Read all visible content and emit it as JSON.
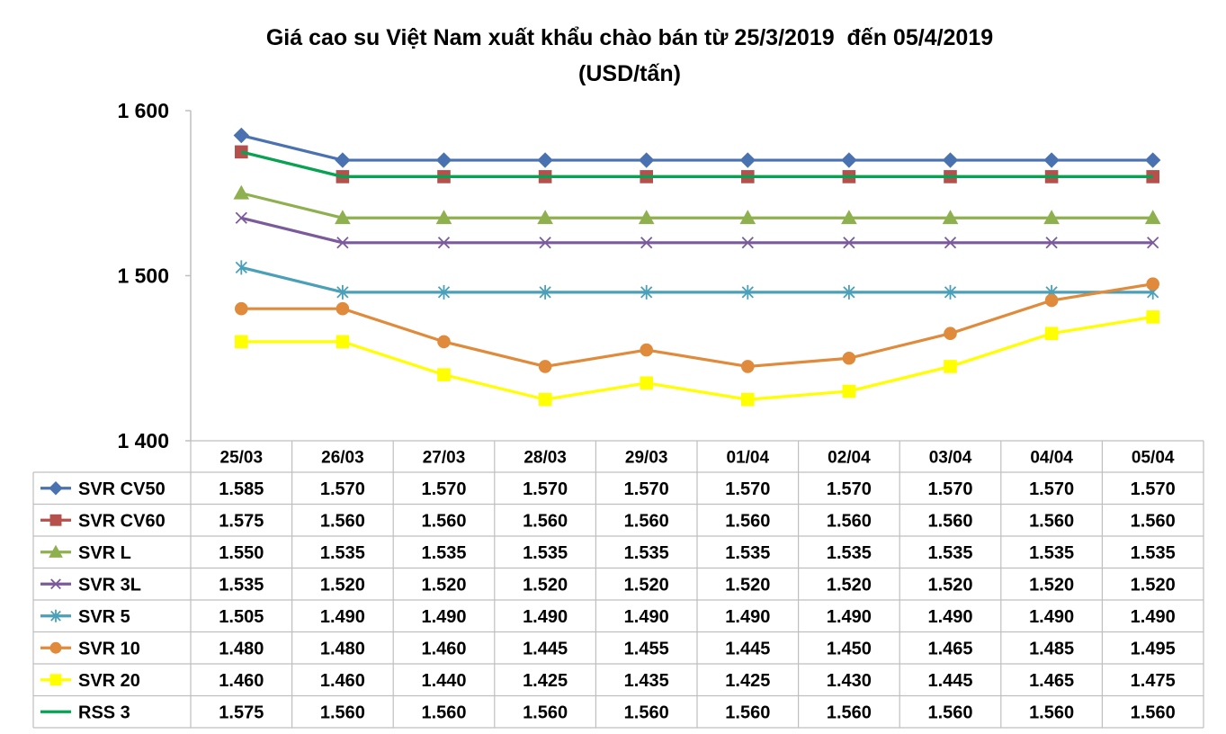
{
  "chart_data": {
    "type": "line",
    "title": "Giá cao su Việt Nam xuất khẩu chào bán từ 25/3/2019  đến 05/4/2019",
    "subtitle": "(USD/tấn)",
    "categories": [
      "25/03",
      "26/03",
      "27/03",
      "28/03",
      "29/03",
      "01/04",
      "02/04",
      "03/04",
      "04/04",
      "05/04"
    ],
    "ylim": [
      1400,
      1600
    ],
    "yticks": [
      1400,
      1500,
      1600
    ],
    "ytick_labels": [
      "1 400",
      "1 500",
      "1 600"
    ],
    "grid": false,
    "legend": "data-table",
    "series": [
      {
        "name": "SVR CV50",
        "marker": "diamond",
        "color": "#4a72b0",
        "values": [
          1585,
          1570,
          1570,
          1570,
          1570,
          1570,
          1570,
          1570,
          1570,
          1570
        ],
        "labels": [
          "1.585",
          "1.570",
          "1.570",
          "1.570",
          "1.570",
          "1.570",
          "1.570",
          "1.570",
          "1.570",
          "1.570"
        ]
      },
      {
        "name": "SVR CV60",
        "marker": "square",
        "color": "#b5504c",
        "values": [
          1575,
          1560,
          1560,
          1560,
          1560,
          1560,
          1560,
          1560,
          1560,
          1560
        ],
        "labels": [
          "1.575",
          "1.560",
          "1.560",
          "1.560",
          "1.560",
          "1.560",
          "1.560",
          "1.560",
          "1.560",
          "1.560"
        ]
      },
      {
        "name": "SVR L",
        "marker": "triangle",
        "color": "#8fb04f",
        "values": [
          1550,
          1535,
          1535,
          1535,
          1535,
          1535,
          1535,
          1535,
          1535,
          1535
        ],
        "labels": [
          "1.550",
          "1.535",
          "1.535",
          "1.535",
          "1.535",
          "1.535",
          "1.535",
          "1.535",
          "1.535",
          "1.535"
        ]
      },
      {
        "name": "SVR 3L",
        "marker": "x",
        "color": "#7b5a9c",
        "values": [
          1535,
          1520,
          1520,
          1520,
          1520,
          1520,
          1520,
          1520,
          1520,
          1520
        ],
        "labels": [
          "1.535",
          "1.520",
          "1.520",
          "1.520",
          "1.520",
          "1.520",
          "1.520",
          "1.520",
          "1.520",
          "1.520"
        ]
      },
      {
        "name": "SVR 5",
        "marker": "star",
        "color": "#4aa0b8",
        "values": [
          1505,
          1490,
          1490,
          1490,
          1490,
          1490,
          1490,
          1490,
          1490,
          1490
        ],
        "labels": [
          "1.505",
          "1.490",
          "1.490",
          "1.490",
          "1.490",
          "1.490",
          "1.490",
          "1.490",
          "1.490",
          "1.490"
        ]
      },
      {
        "name": "SVR 10",
        "marker": "circle",
        "color": "#e08a3c",
        "values": [
          1480,
          1480,
          1460,
          1445,
          1455,
          1445,
          1450,
          1465,
          1485,
          1495
        ],
        "labels": [
          "1.480",
          "1.480",
          "1.460",
          "1.445",
          "1.455",
          "1.445",
          "1.450",
          "1.465",
          "1.485",
          "1.495"
        ]
      },
      {
        "name": "SVR 20",
        "marker": "square",
        "color": "#ffff00",
        "values": [
          1460,
          1460,
          1440,
          1425,
          1435,
          1425,
          1430,
          1445,
          1465,
          1475
        ],
        "labels": [
          "1.460",
          "1.460",
          "1.440",
          "1.425",
          "1.435",
          "1.425",
          "1.430",
          "1.445",
          "1.465",
          "1.475"
        ]
      },
      {
        "name": "RSS 3",
        "marker": "none",
        "color": "#00a651",
        "values": [
          1575,
          1560,
          1560,
          1560,
          1560,
          1560,
          1560,
          1560,
          1560,
          1560
        ],
        "labels": [
          "1.575",
          "1.560",
          "1.560",
          "1.560",
          "1.560",
          "1.560",
          "1.560",
          "1.560",
          "1.560",
          "1.560"
        ]
      }
    ]
  }
}
